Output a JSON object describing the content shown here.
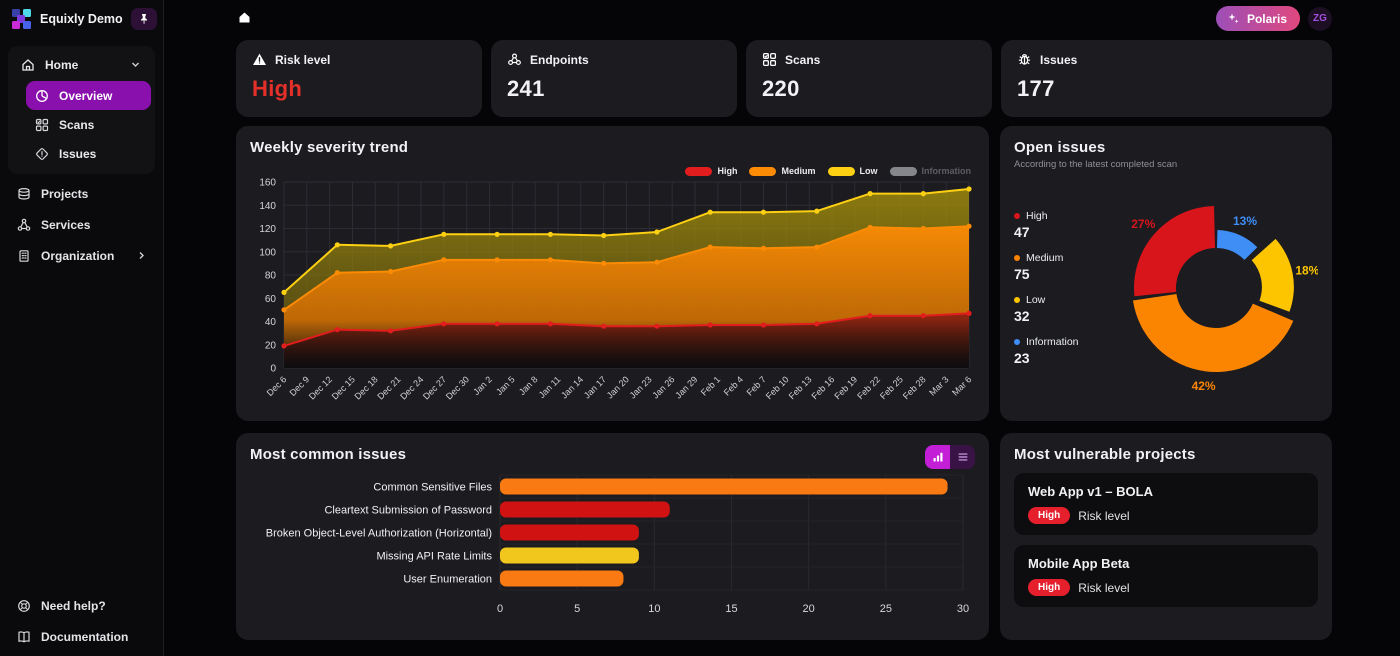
{
  "colors": {
    "high": "#e11d1d",
    "medium": "#fb8b04",
    "low": "#fdd013",
    "information": "#3f8ef6",
    "accent": "#8a10ad",
    "risk_text": "#e5302a",
    "badge_red": "#e5202c",
    "panel_bg": "#1b1b20",
    "page_bg": "#050507"
  },
  "sidebar": {
    "brand": "Equixly Demo",
    "home": {
      "label": "Home"
    },
    "children": [
      {
        "label": "Overview",
        "active": true
      },
      {
        "label": "Scans"
      },
      {
        "label": "Issues"
      }
    ],
    "sections": [
      {
        "label": "Projects"
      },
      {
        "label": "Services"
      },
      {
        "label": "Organization"
      }
    ],
    "footer": [
      {
        "label": "Need help?"
      },
      {
        "label": "Documentation"
      }
    ]
  },
  "topbar": {
    "polaris_label": "Polaris",
    "avatar_initials": "ZG"
  },
  "stats": [
    {
      "label": "Risk level",
      "value": "High",
      "value_color": "#e5302a"
    },
    {
      "label": "Endpoints",
      "value": "241"
    },
    {
      "label": "Scans",
      "value": "220"
    },
    {
      "label": "Issues",
      "value": "177"
    }
  ],
  "panels": {
    "trend": {
      "title": "Weekly severity trend"
    },
    "open_issues": {
      "title": "Open issues",
      "subtitle": "According to the latest completed scan"
    },
    "common_issues": {
      "title": "Most common issues"
    },
    "vulnerable": {
      "title": "Most vulnerable projects",
      "projects": [
        {
          "name": "Web App v1 – BOLA",
          "badge": "High",
          "label": "Risk level"
        },
        {
          "name": "Mobile App Beta",
          "badge": "High",
          "label": "Risk level"
        }
      ]
    }
  },
  "chart_data": [
    {
      "type": "area",
      "title": "Weekly severity trend",
      "stacked": true,
      "note": "values are cumulative stack tops (High, High+Medium, High+Medium+Low); Information series toggled off",
      "ylim": [
        0,
        160
      ],
      "y_ticks": [
        0,
        20,
        40,
        60,
        80,
        100,
        120,
        140,
        160
      ],
      "x_tick_days": [
        0,
        3,
        6,
        9,
        12,
        15,
        18,
        21,
        24,
        27,
        30,
        33,
        36,
        39,
        42,
        45,
        48,
        51,
        54,
        57,
        60,
        63,
        66,
        69,
        72,
        75,
        78,
        81,
        84,
        87,
        90
      ],
      "x_tick_labels": [
        "Dec 6",
        "Dec 9",
        "Dec 12",
        "Dec 15",
        "Dec 18",
        "Dec 21",
        "Dec 24",
        "Dec 27",
        "Dec 30",
        "Jan 2",
        "Jan 5",
        "Jan 8",
        "Jan 11",
        "Jan 14",
        "Jan 17",
        "Jan 20",
        "Jan 23",
        "Jan 26",
        "Jan 29",
        "Feb 1",
        "Feb 4",
        "Feb 7",
        "Feb 10",
        "Feb 13",
        "Feb 16",
        "Feb 19",
        "Feb 22",
        "Feb 25",
        "Feb 28",
        "Mar 3",
        "Mar 6"
      ],
      "week_days": [
        0,
        7,
        14,
        21,
        28,
        35,
        42,
        49,
        56,
        63,
        70,
        77,
        84,
        90
      ],
      "week_labels": [
        "Dec 6",
        "Dec 13",
        "Dec 20",
        "Dec 27",
        "Jan 3",
        "Jan 10",
        "Jan 17",
        "Jan 24",
        "Jan 31",
        "Feb 7",
        "Feb 14",
        "Feb 21",
        "Feb 28",
        "Mar 6"
      ],
      "series": [
        {
          "name": "Low",
          "color": "#fdd013",
          "values": [
            65,
            106,
            105,
            115,
            115,
            115,
            114,
            117,
            134,
            134,
            135,
            150,
            150,
            154
          ]
        },
        {
          "name": "Medium",
          "color": "#fb8b04",
          "values": [
            50,
            82,
            83,
            93,
            93,
            93,
            90,
            91,
            104,
            103,
            104,
            121,
            120,
            122
          ]
        },
        {
          "name": "High",
          "color": "#e11d1d",
          "values": [
            19,
            33,
            32,
            38,
            38,
            38,
            36,
            36,
            37,
            37,
            38,
            45,
            45,
            47
          ]
        }
      ],
      "legend": [
        {
          "name": "High",
          "color": "#e11d1d",
          "enabled": true
        },
        {
          "name": "Medium",
          "color": "#fb8b04",
          "enabled": true
        },
        {
          "name": "Low",
          "color": "#fdd013",
          "enabled": true
        },
        {
          "name": "Information",
          "color": "#85858c",
          "enabled": false
        }
      ]
    },
    {
      "type": "pie",
      "title": "Open issues",
      "donut": true,
      "start_angle_deg": 0,
      "clockwise": true,
      "slices": [
        {
          "label": "Information",
          "value": 23,
          "pct": "13%",
          "color": "#3f8ef6",
          "outer_r": 58,
          "offset": 0
        },
        {
          "label": "Low",
          "value": 32,
          "pct": "18%",
          "color": "#fdc500",
          "outer_r": 72,
          "offset": 6
        },
        {
          "label": "Medium",
          "value": 75,
          "pct": "42%",
          "color": "#fb8500",
          "outer_r": 84,
          "offset": 0
        },
        {
          "label": "High",
          "value": 47,
          "pct": "27%",
          "color": "#d9151c",
          "outer_r": 82,
          "offset": 0
        }
      ],
      "legend_order": [
        "High",
        "Medium",
        "Low",
        "Information"
      ]
    },
    {
      "type": "bar",
      "orientation": "horizontal",
      "title": "Most common issues",
      "categories": [
        "Common Sensitive Files",
        "Cleartext Submission of Password",
        "Broken Object-Level Authorization (Horizontal)",
        "Missing API Rate Limits",
        "User Enumeration"
      ],
      "values": [
        29,
        11,
        9,
        9,
        8
      ],
      "bar_colors": [
        "#f97a12",
        "#d01212",
        "#d01212",
        "#f2c71d",
        "#f97a12"
      ],
      "xlim": [
        0,
        30
      ],
      "x_ticks": [
        0,
        5,
        10,
        15,
        20,
        25,
        30
      ]
    }
  ]
}
